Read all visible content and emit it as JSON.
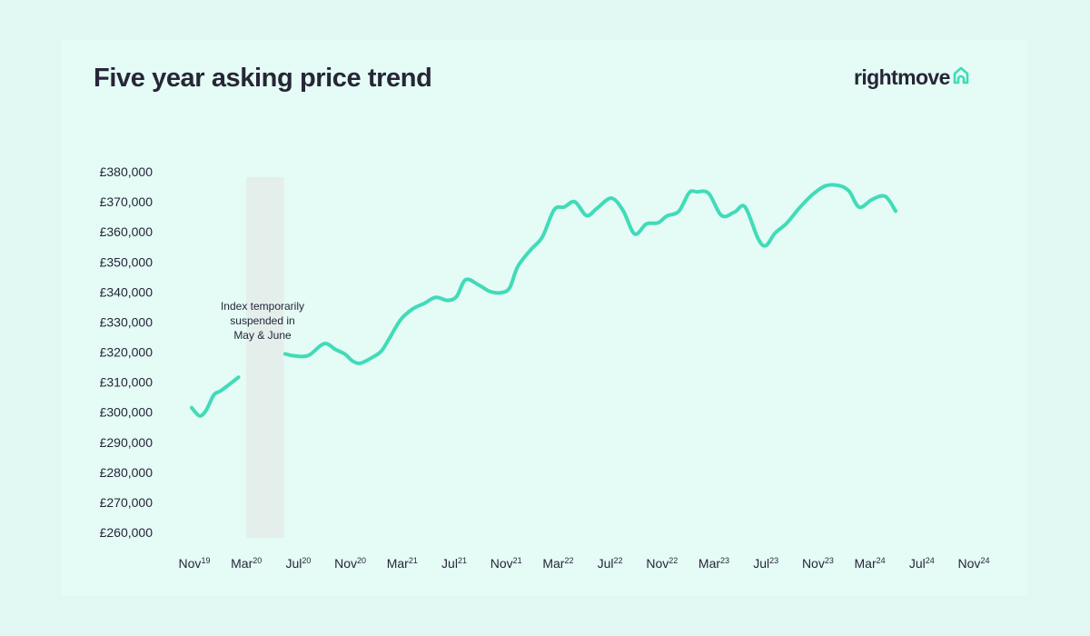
{
  "header": {
    "title": "Five year asking price trend",
    "brand": "rightmove"
  },
  "colors": {
    "background": "#e1f8f2",
    "line": "#41dbb8",
    "text": "#262637",
    "suspension_band": "#e4efec"
  },
  "icons": {
    "brand_icon": "house-outline-icon"
  },
  "chart_data": {
    "type": "line",
    "title": "Five year asking price trend",
    "xlabel": "",
    "ylabel": "",
    "ylim": [
      260000,
      380000
    ],
    "yticks": [
      380000,
      370000,
      360000,
      350000,
      340000,
      330000,
      320000,
      310000,
      300000,
      290000,
      280000,
      270000,
      260000
    ],
    "ytick_labels": [
      "£380,000",
      "£370,000",
      "£360,000",
      "£350,000",
      "£340,000",
      "£330,000",
      "£320,000",
      "£310,000",
      "£300,000",
      "£290,000",
      "£280,000",
      "£270,000",
      "£260,000"
    ],
    "xlim": [
      0,
      60
    ],
    "xticks": [
      {
        "x": 0,
        "month": "Nov",
        "year": "19"
      },
      {
        "x": 4,
        "month": "Mar",
        "year": "20"
      },
      {
        "x": 8,
        "month": "Jul",
        "year": "20"
      },
      {
        "x": 12,
        "month": "Nov",
        "year": "20"
      },
      {
        "x": 16,
        "month": "Mar",
        "year": "21"
      },
      {
        "x": 20,
        "month": "Jul",
        "year": "21"
      },
      {
        "x": 24,
        "month": "Nov",
        "year": "21"
      },
      {
        "x": 28,
        "month": "Mar",
        "year": "22"
      },
      {
        "x": 32,
        "month": "Jul",
        "year": "22"
      },
      {
        "x": 36,
        "month": "Nov",
        "year": "22"
      },
      {
        "x": 40,
        "month": "Mar",
        "year": "23"
      },
      {
        "x": 44,
        "month": "Jul",
        "year": "23"
      },
      {
        "x": 48,
        "month": "Nov",
        "year": "23"
      },
      {
        "x": 52,
        "month": "Mar",
        "year": "24"
      },
      {
        "x": 56,
        "month": "Jul",
        "year": "24"
      },
      {
        "x": 60,
        "month": "Nov",
        "year": "24"
      }
    ],
    "suspension": {
      "start": 4.2,
      "end": 7.1,
      "label_lines": [
        "Index temporarily",
        "suspended in",
        "May & June"
      ]
    },
    "series": [
      {
        "name": "Asking price",
        "segments": [
          [
            [
              0,
              301500
            ],
            [
              0.6,
              298800
            ],
            [
              1.1,
              300500
            ],
            [
              1.7,
              305700
            ],
            [
              2.2,
              307000
            ],
            [
              2.8,
              308900
            ],
            [
              3.6,
              311600
            ]
          ],
          [
            [
              7.2,
              319400
            ],
            [
              8.0,
              318700
            ],
            [
              9.0,
              318900
            ],
            [
              10.2,
              322800
            ],
            [
              11.1,
              320800
            ],
            [
              11.8,
              319300
            ],
            [
              12.4,
              317000
            ],
            [
              13.0,
              316300
            ],
            [
              13.9,
              318200
            ],
            [
              14.6,
              320300
            ],
            [
              15.2,
              324400
            ],
            [
              16.1,
              330800
            ],
            [
              17.0,
              334300
            ],
            [
              17.9,
              336200
            ],
            [
              18.8,
              338200
            ],
            [
              19.7,
              337200
            ],
            [
              20.4,
              338500
            ],
            [
              21.1,
              344100
            ],
            [
              22.1,
              342300
            ],
            [
              23.0,
              340100
            ],
            [
              23.9,
              339800
            ],
            [
              24.5,
              341500
            ],
            [
              25.1,
              348400
            ],
            [
              26.1,
              354000
            ],
            [
              27.0,
              358300
            ],
            [
              27.9,
              367300
            ],
            [
              28.7,
              368300
            ],
            [
              29.5,
              370000
            ],
            [
              30.4,
              365400
            ],
            [
              31.2,
              367800
            ],
            [
              32.3,
              371200
            ],
            [
              33.2,
              367200
            ],
            [
              34.1,
              359300
            ],
            [
              35.0,
              362600
            ],
            [
              35.9,
              363000
            ],
            [
              36.6,
              365300
            ],
            [
              37.5,
              366800
            ],
            [
              38.3,
              373000
            ],
            [
              38.9,
              373300
            ],
            [
              39.8,
              372800
            ],
            [
              40.8,
              365400
            ],
            [
              41.8,
              366600
            ],
            [
              42.6,
              368300
            ],
            [
              43.6,
              357800
            ],
            [
              44.2,
              355400
            ],
            [
              44.9,
              359500
            ],
            [
              45.8,
              362800
            ],
            [
              46.8,
              368000
            ],
            [
              47.8,
              372400
            ],
            [
              48.8,
              375300
            ],
            [
              49.8,
              375400
            ],
            [
              50.6,
              373600
            ],
            [
              51.4,
              368200
            ],
            [
              52.4,
              370800
            ],
            [
              53.4,
              371800
            ],
            [
              54.2,
              366900
            ]
          ]
        ]
      }
    ]
  }
}
